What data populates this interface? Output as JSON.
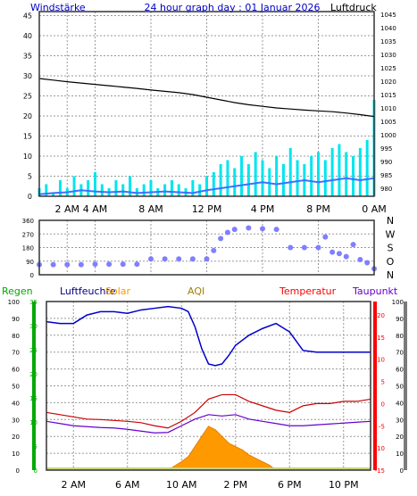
{
  "header": {
    "title": "24 hour graph day : 01 Januar 2026",
    "left_label": "Windstärke",
    "right_label": "Luftdruck"
  },
  "colors": {
    "frame": "#333333",
    "grid": "#9a9a9a",
    "background": "#ffffff",
    "wind": "#00e5ee",
    "gust": "#00e5ee",
    "wind_avg": "#3f6fff",
    "pressure": "#000000",
    "direction": "#7f7fff",
    "humidity": "#0000cc",
    "temperature": "#cc0000",
    "dewpoint": "#6600cc",
    "solar": "#ff9900",
    "rain_axis": "#00aa00",
    "temp_axis": "#ff0000",
    "humidity_label": "#000080",
    "aqi_label": "#a08000",
    "title_color": "#0000cc"
  },
  "chart_data": [
    {
      "type": "line",
      "title": "24 hour graph day : 01 Januar 2026",
      "x_tick_labels": [
        "2 AM",
        "4 AM",
        "8 AM",
        "12 PM",
        "4 PM",
        "8 PM",
        "0 AM"
      ],
      "x_tick_hours": [
        2,
        4,
        8,
        12,
        16,
        20,
        24
      ],
      "xlim": [
        0,
        24
      ],
      "grid": true,
      "left_axis": {
        "label": "Windstärke",
        "ylim": [
          0,
          46
        ],
        "ticks": [
          0,
          5,
          10,
          15,
          20,
          25,
          30,
          35,
          40,
          45
        ]
      },
      "right_axis": {
        "label": "Luftdruck",
        "ylim": [
          977,
          1046
        ],
        "ticks": [
          980,
          985,
          990,
          995,
          1000,
          1005,
          1010,
          1015,
          1020,
          1025,
          1030,
          1035,
          1040,
          1045
        ]
      },
      "series": [
        {
          "axis": "right",
          "style": "line",
          "x": [
            0,
            1,
            2,
            3,
            4,
            5,
            6,
            7,
            8,
            9,
            10,
            11,
            12,
            13,
            14,
            15,
            16,
            17,
            18,
            19,
            20,
            21,
            22,
            23,
            24
          ],
          "values": [
            1021,
            1020.4,
            1019.8,
            1019.3,
            1018.8,
            1018.3,
            1017.8,
            1017.3,
            1016.7,
            1016.2,
            1015.7,
            1015.0,
            1014.0,
            1013.0,
            1012.0,
            1011.2,
            1010.6,
            1010.0,
            1009.6,
            1009.2,
            1008.9,
            1008.6,
            1008.1,
            1007.5,
            1006.8
          ]
        },
        {
          "axis": "left",
          "style": "bars",
          "x": [
            0,
            0.5,
            1,
            1.5,
            2,
            2.5,
            3,
            3.5,
            4,
            4.5,
            5,
            5.5,
            6,
            6.5,
            7,
            7.5,
            8,
            8.5,
            9,
            9.5,
            10,
            10.5,
            11,
            11.5,
            12,
            12.5,
            13,
            13.5,
            14,
            14.5,
            15,
            15.5,
            16,
            16.5,
            17,
            17.5,
            18,
            18.5,
            19,
            19.5,
            20,
            20.5,
            21,
            21.5,
            22,
            22.5,
            23,
            23.5,
            24
          ],
          "values": [
            2,
            3,
            1,
            4,
            2,
            5,
            3,
            4,
            6,
            3,
            2,
            4,
            3,
            5,
            2,
            3,
            4,
            2,
            3,
            4,
            3,
            2,
            4,
            3,
            5,
            6,
            8,
            9,
            7,
            10,
            8,
            11,
            9,
            7,
            10,
            8,
            12,
            9,
            8,
            10,
            11,
            9,
            12,
            13,
            11,
            10,
            12,
            14,
            24
          ]
        },
        {
          "axis": "left",
          "style": "line",
          "x": [
            0,
            1,
            2,
            3,
            4,
            5,
            6,
            7,
            8,
            9,
            10,
            11,
            12,
            13,
            14,
            15,
            16,
            17,
            18,
            19,
            20,
            21,
            22,
            23,
            24
          ],
          "values": [
            0.5,
            0.8,
            1.0,
            1.5,
            1.2,
            1.0,
            1.2,
            0.8,
            1.0,
            1.2,
            1.0,
            0.8,
            1.5,
            2.0,
            2.5,
            3.0,
            3.5,
            3.0,
            3.5,
            4.0,
            3.5,
            4.0,
            4.5,
            4.0,
            4.5
          ]
        }
      ]
    },
    {
      "type": "scatter",
      "xlim": [
        0,
        24
      ],
      "grid": true,
      "left_axis": {
        "ylim": [
          0,
          360
        ],
        "ticks": [
          0,
          90,
          180,
          270,
          360
        ]
      },
      "right_labels": [
        "N",
        "W",
        "S",
        "O",
        "N"
      ],
      "series": [
        {
          "x": [
            0,
            1,
            2,
            3,
            4,
            5,
            6,
            7,
            8,
            9,
            10,
            11,
            12,
            12.5,
            13,
            13.5,
            14,
            15,
            16,
            17,
            18,
            19,
            20,
            20.5,
            21,
            21.5,
            22,
            22.5,
            23,
            23.5,
            24
          ],
          "values": [
            67,
            67,
            67,
            67,
            70,
            70,
            70,
            70,
            105,
            105,
            105,
            105,
            105,
            160,
            240,
            280,
            300,
            310,
            305,
            300,
            180,
            180,
            180,
            250,
            150,
            140,
            120,
            200,
            100,
            80,
            40
          ]
        }
      ]
    },
    {
      "type": "line",
      "x_tick_labels": [
        "2 AM",
        "6 AM",
        "10 AM",
        "2 PM",
        "6 PM",
        "10 PM"
      ],
      "x_tick_hours": [
        2,
        6,
        10,
        14,
        18,
        22
      ],
      "xlim": [
        0,
        24
      ],
      "grid": true,
      "legend": [
        "Regen",
        "Luftfeuchte",
        "Solar",
        "AQI",
        "Temperatur",
        "Taupunkt"
      ],
      "axes": {
        "humidity": {
          "ticks": [
            0,
            10,
            20,
            30,
            40,
            50,
            60,
            70,
            80,
            90,
            100
          ],
          "ylim": [
            0,
            100
          ]
        },
        "rain": {
          "ticks": [
            0,
            5,
            10,
            15,
            20,
            25,
            30,
            35
          ],
          "ylim": [
            0,
            35
          ]
        },
        "temperature": {
          "ticks": [
            -15,
            -10,
            -5,
            0,
            5,
            10,
            15,
            20
          ],
          "ylim": [
            -15,
            23
          ]
        },
        "solar": {
          "ticks": [
            0,
            10,
            20,
            30,
            40,
            50,
            60,
            70,
            80,
            90,
            100
          ],
          "ylim": [
            0,
            100
          ]
        }
      },
      "series": [
        {
          "name": "Luftfeuchte",
          "x": [
            0,
            1,
            2,
            3,
            4,
            5,
            6,
            7,
            8,
            9,
            10,
            10.5,
            11,
            11.5,
            12,
            12.5,
            13,
            13.5,
            14,
            15,
            16,
            17,
            18,
            19,
            20,
            21,
            22,
            23,
            24
          ],
          "values": [
            88,
            87,
            87,
            92,
            94,
            94,
            93,
            95,
            96,
            97,
            96,
            94,
            85,
            72,
            63,
            62,
            63,
            68,
            74,
            80,
            84,
            87,
            82,
            71,
            70,
            70,
            70,
            70,
            70
          ]
        },
        {
          "name": "Temperatur",
          "x": [
            0,
            1,
            2,
            3,
            4,
            5,
            6,
            7,
            8,
            9,
            10,
            11,
            12,
            13,
            14,
            15,
            16,
            17,
            18,
            19,
            20,
            21,
            22,
            23,
            24
          ],
          "values": [
            -2,
            -2.5,
            -3,
            -3.5,
            -3.6,
            -3.8,
            -4.0,
            -4.3,
            -5.0,
            -5.5,
            -4.0,
            -2.0,
            1.0,
            2.0,
            2.0,
            0.5,
            -0.5,
            -1.5,
            -2.0,
            -0.5,
            0.0,
            0.0,
            0.5,
            0.5,
            1.0
          ]
        },
        {
          "name": "Taupunkt",
          "x": [
            0,
            1,
            2,
            3,
            4,
            5,
            6,
            7,
            8,
            9,
            10,
            11,
            12,
            13,
            14,
            15,
            16,
            17,
            18,
            19,
            20,
            21,
            22,
            23,
            24
          ],
          "values": [
            -4.0,
            -4.5,
            -5.0,
            -5.2,
            -5.4,
            -5.5,
            -5.8,
            -6.2,
            -6.6,
            -6.5,
            -5.0,
            -3.5,
            -2.5,
            -2.8,
            -2.5,
            -3.5,
            -4.0,
            -4.5,
            -5.0,
            -5.0,
            -4.8,
            -4.6,
            -4.4,
            -4.2,
            -4.0
          ]
        },
        {
          "name": "Solar",
          "x": [
            9,
            10,
            10.5,
            11,
            11.5,
            12,
            12.5,
            13,
            13.5,
            14,
            14.5,
            15,
            15.5,
            16,
            16.5,
            17
          ],
          "values": [
            0,
            5,
            8,
            14,
            20,
            26,
            24,
            20,
            16,
            14,
            12,
            9,
            7,
            5,
            3,
            0
          ]
        }
      ]
    }
  ]
}
